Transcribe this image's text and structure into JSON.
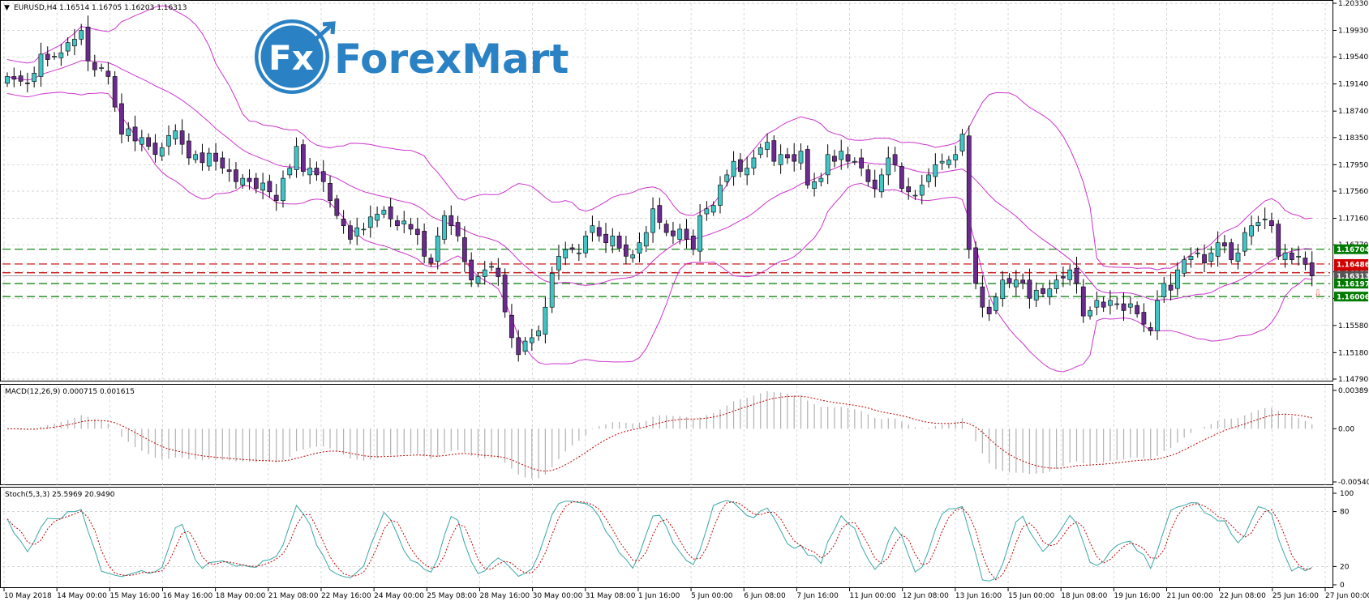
{
  "chart_data": {
    "type": "candlestick",
    "symbol_header": "EURUSD,H4  1.16514 1.16705 1.16203 1.16313",
    "watermark": {
      "fx": "Fx",
      "brand": "ForexMart"
    },
    "colors": {
      "bull": "#40c4c4",
      "bear": "#6a2c8c",
      "band": "#cc33cc",
      "grid": "#c8c8c8",
      "support": "#007a00",
      "resistance": "#c80000",
      "macd_signal": "#c00000",
      "stoch_main": "#3aa6a6",
      "stoch_signal": "#c00000"
    },
    "x_tick_labels": [
      "10 May 2018",
      "14 May 00:00",
      "15 May 16:00",
      "16 May 16:00",
      "18 May 00:00",
      "21 May 08:00",
      "22 May 16:00",
      "24 May 00:00",
      "25 May 08:00",
      "28 May 16:00",
      "30 May 00:00",
      "31 May 08:00",
      "1 Jun 16:00",
      "5 Jun 00:00",
      "6 Jun 08:00",
      "7 Jun 16:00",
      "11 Jun 00:00",
      "12 Jun 08:00",
      "13 Jun 16:00",
      "15 Jun 00:00",
      "18 Jun 08:00",
      "19 Jun 16:00",
      "21 Jun 00:00",
      "22 Jun 08:00",
      "25 Jun 16:00",
      "27 Jun 00:00"
    ],
    "price_axis": {
      "ymin": 1.1479,
      "ymax": 1.2033,
      "ticks": [
        "1.20330",
        "1.19930",
        "1.19540",
        "1.19140",
        "1.18740",
        "1.18350",
        "1.17950",
        "1.17560",
        "1.17160",
        "1.16770",
        "1.16370",
        "1.15980",
        "1.15580",
        "1.15180",
        "1.14790"
      ]
    },
    "levels": [
      {
        "label": "1.16704",
        "value": 1.16704,
        "kind": "support"
      },
      {
        "label": "1.16486",
        "value": 1.16486,
        "kind": "resistance"
      },
      {
        "label": "1.16357",
        "value": 1.16357,
        "kind": "resistance"
      },
      {
        "label": "1.16313",
        "value": 1.16313,
        "kind": "current"
      },
      {
        "label": "1.16197",
        "value": 1.16197,
        "kind": "support"
      },
      {
        "label": "1.16006",
        "value": 1.16006,
        "kind": "support"
      }
    ],
    "candles_close": [
      1.1925,
      1.1921,
      1.1918,
      1.1915,
      1.193,
      1.1958,
      1.195,
      1.1955,
      1.196,
      1.1975,
      1.198,
      1.1993,
      1.1948,
      1.1935,
      1.1938,
      1.1925,
      1.188,
      1.184,
      1.1848,
      1.183,
      1.1835,
      1.1822,
      1.181,
      1.182,
      1.1838,
      1.1845,
      1.1825,
      1.1805,
      1.181,
      1.1798,
      1.1812,
      1.18,
      1.179,
      1.1785,
      1.177,
      1.1775,
      1.177,
      1.176,
      1.1768,
      1.1755,
      1.1742,
      1.1775,
      1.179,
      1.1822,
      1.1785,
      1.179,
      1.178,
      1.177,
      1.1742,
      1.172,
      1.1705,
      1.1685,
      1.1702,
      1.17,
      1.1718,
      1.1722,
      1.1728,
      1.1715,
      1.1705,
      1.1712,
      1.17,
      1.1692,
      1.166,
      1.165,
      1.169,
      1.172,
      1.1705,
      1.169,
      1.1652,
      1.1625,
      1.163,
      1.164,
      1.1645,
      1.163,
      1.1578,
      1.154,
      1.1515,
      1.1535,
      1.154,
      1.155,
      1.1585,
      1.1635,
      1.166,
      1.167,
      1.167,
      1.1665,
      1.169,
      1.1705,
      1.169,
      1.168,
      1.169,
      1.1672,
      1.166,
      1.1662,
      1.168,
      1.1695,
      1.173,
      1.171,
      1.1695,
      1.169,
      1.17,
      1.1685,
      1.167,
      1.172,
      1.173,
      1.1735,
      1.1765,
      1.178,
      1.18,
      1.1785,
      1.179,
      1.1805,
      1.182,
      1.1828,
      1.18,
      1.181,
      1.1805,
      1.18,
      1.1815,
      1.1765,
      1.177,
      1.1775,
      1.181,
      1.18,
      1.1815,
      1.18,
      1.18,
      1.179,
      1.177,
      1.176,
      1.178,
      1.1805,
      1.1795,
      1.176,
      1.1755,
      1.175,
      1.1765,
      1.178,
      1.1795,
      1.18,
      1.1802,
      1.181,
      1.184,
      1.167,
      1.162,
      1.1585,
      1.1575,
      1.16,
      1.1625,
      1.162,
      1.1625,
      1.162,
      1.1598,
      1.161,
      1.1605,
      1.1612,
      1.1625,
      1.1628,
      1.164,
      1.162,
      1.1572,
      1.158,
      1.1595,
      1.1585,
      1.1595,
      1.159,
      1.158,
      1.159,
      1.1575,
      1.156,
      1.155,
      1.1595,
      1.162,
      1.161,
      1.164,
      1.1655,
      1.166,
      1.1665,
      1.165,
      1.1665,
      1.168,
      1.1675,
      1.1655,
      1.1665,
      1.1695,
      1.1705,
      1.171,
      1.1715,
      1.1705,
      1.166,
      1.1665,
      1.1655,
      1.166,
      1.1648,
      1.1631
    ],
    "macd": {
      "label": "MACD(12,26,9) 0.000715 0.001615",
      "ymin": -0.005404,
      "ymax": 0.003893,
      "ticks": [
        "0.003893",
        "0.00",
        "-0.005404"
      ]
    },
    "stoch": {
      "label": "Stoch(5,3,3) 25.5969 20.9490",
      "ymin": 0,
      "ymax": 100,
      "ticks": [
        "100",
        "80",
        "20",
        "0"
      ]
    }
  }
}
